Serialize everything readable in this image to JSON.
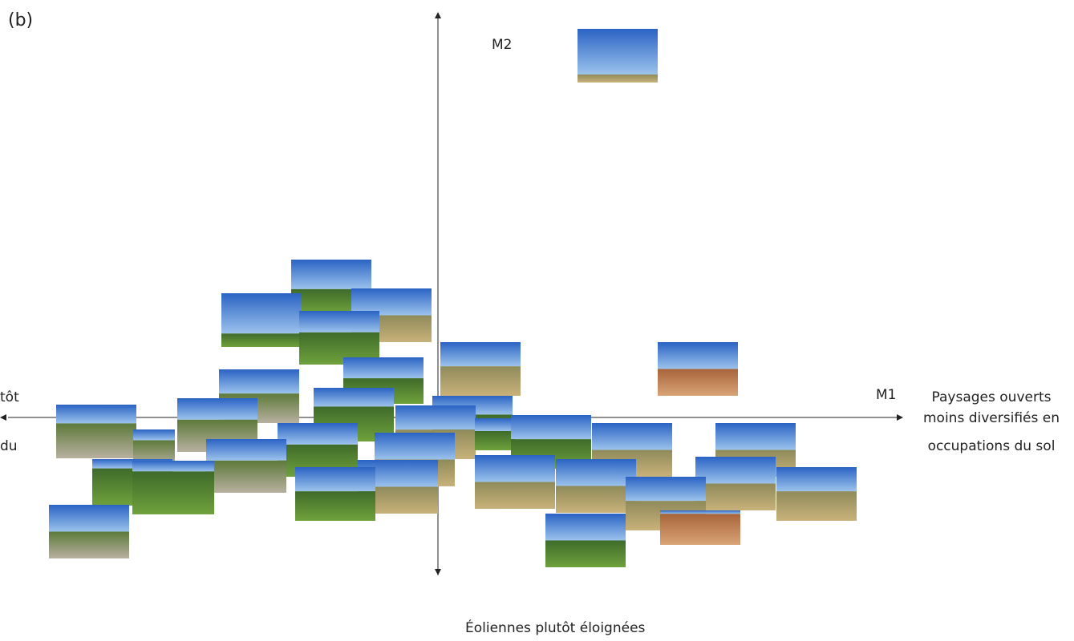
{
  "panel_label": "(b)",
  "axis_y_label": "M2",
  "axis_x_label": "M1",
  "right_label": [
    "Paysages ouverts",
    "moins diversifiés en",
    "occupations du sol"
  ],
  "left_label": [
    "tôt",
    "du"
  ],
  "bottom_label": "Éoliennes plutôt éloignées"
}
